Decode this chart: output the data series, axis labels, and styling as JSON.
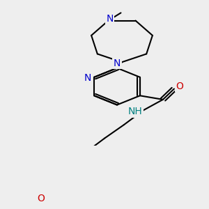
{
  "background_color": "#eeeeee",
  "bond_color": "#000000",
  "bond_width": 1.5,
  "atom_colors": {
    "N": "#0000cc",
    "O": "#cc0000",
    "NH": "#008080"
  },
  "figsize": [
    3.0,
    3.0
  ],
  "dpi": 100,
  "xlim": [
    0,
    300
  ],
  "ylim": [
    0,
    300
  ]
}
